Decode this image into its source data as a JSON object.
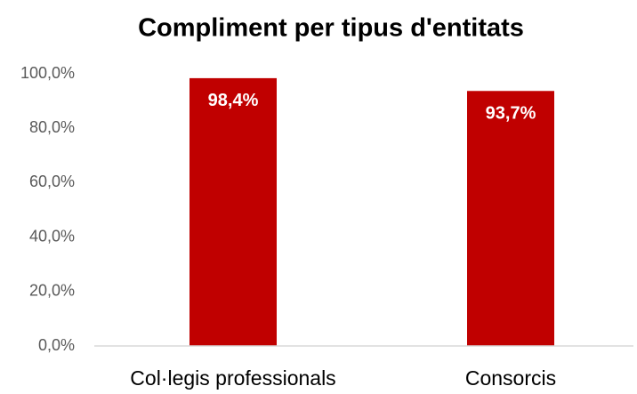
{
  "chart_data": {
    "type": "bar",
    "title": "Compliment per tipus d'entitats",
    "categories": [
      "Col·legis professionals",
      "Consorcis"
    ],
    "values": [
      98.4,
      93.7
    ],
    "value_labels": [
      "98,4%",
      "93,7%"
    ],
    "color": "#c00000",
    "ylim": [
      0,
      100
    ],
    "yticks": [
      {
        "value": 0,
        "label": "0,0%"
      },
      {
        "value": 20,
        "label": "20,0%"
      },
      {
        "value": 40,
        "label": "40,0%"
      },
      {
        "value": 60,
        "label": "60,0%"
      },
      {
        "value": 80,
        "label": "80,0%"
      },
      {
        "value": 100,
        "label": "100,0%"
      }
    ],
    "grid": false
  }
}
